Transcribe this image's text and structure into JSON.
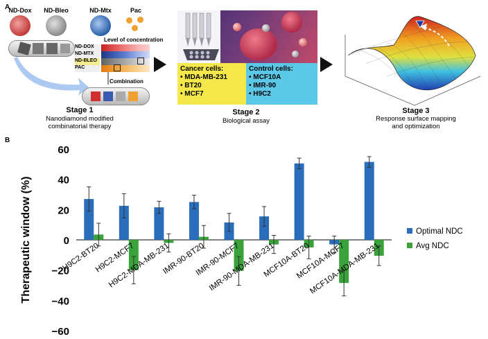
{
  "panel_a": {
    "label": "A",
    "nanodiamonds": [
      "ND-Dox",
      "ND-Bleo",
      "ND-Mtx",
      "Pac"
    ],
    "matrix_title": "Level of concentration",
    "matrix_rows": [
      "ND-DOX",
      "ND-MTX",
      "ND-BLEO",
      "PAC"
    ],
    "combination_label": "Combination",
    "stage1": {
      "title": "Stage 1",
      "subtitle_line1": "Nanodiamond modified",
      "subtitle_line2": "combinatorial therapy"
    },
    "stage2": {
      "title": "Stage 2",
      "subtitle": "Biological assay",
      "cancer_header": "Cancer cells:",
      "cancer_cells": [
        "• MDA-MB-231",
        "• BT20",
        "• MCF7"
      ],
      "control_header": "Control cells:",
      "control_cells": [
        "• MCF10A",
        "• IMR-90",
        "• H9C2"
      ]
    },
    "stage3": {
      "title": "Stage 3",
      "subtitle_line1": "Response surface mapping",
      "subtitle_line2": "and optimization"
    }
  },
  "panel_b": {
    "label": "B"
  },
  "colors": {
    "optimal": "#2a6ebb",
    "avg": "#3aa23a",
    "cancer_box": "#f5e84a",
    "control_box": "#5bc8e8"
  },
  "chart_data": {
    "type": "bar",
    "categories": [
      "H9C2-BT20",
      "H9C2-MCF7",
      "H9C2-MDA-MB-231",
      "IMR-90-BT20",
      "IMR-90-MCF7",
      "IMR-90-MDA-MB-231",
      "MCF10A-BT20",
      "MCF10A-MCF7",
      "MCF10A-MDA-MB-231"
    ],
    "series": [
      {
        "name": "Optimal NDC",
        "values": [
          27,
          22.5,
          21.5,
          25,
          11.5,
          15.5,
          50.5,
          -3,
          51.5
        ],
        "errors": [
          8,
          8,
          4,
          4.5,
          6,
          6.5,
          3.5,
          5.5,
          3.5
        ]
      },
      {
        "name": "Avg NDC",
        "values": [
          3.5,
          -20,
          -2,
          2,
          -20.5,
          -3,
          -5,
          -28.5,
          -10.5
        ],
        "errors": [
          7.5,
          9,
          6,
          7.5,
          9.5,
          6,
          7.5,
          8.5,
          6.5
        ]
      }
    ],
    "ylabel": "Therapeutic window (%)",
    "xlabel": "",
    "ylim": [
      -60,
      60
    ],
    "yticks": [
      "60",
      "40",
      "20",
      "0",
      "−20",
      "−40",
      "−60"
    ],
    "legend_position": "right",
    "grid": false
  }
}
